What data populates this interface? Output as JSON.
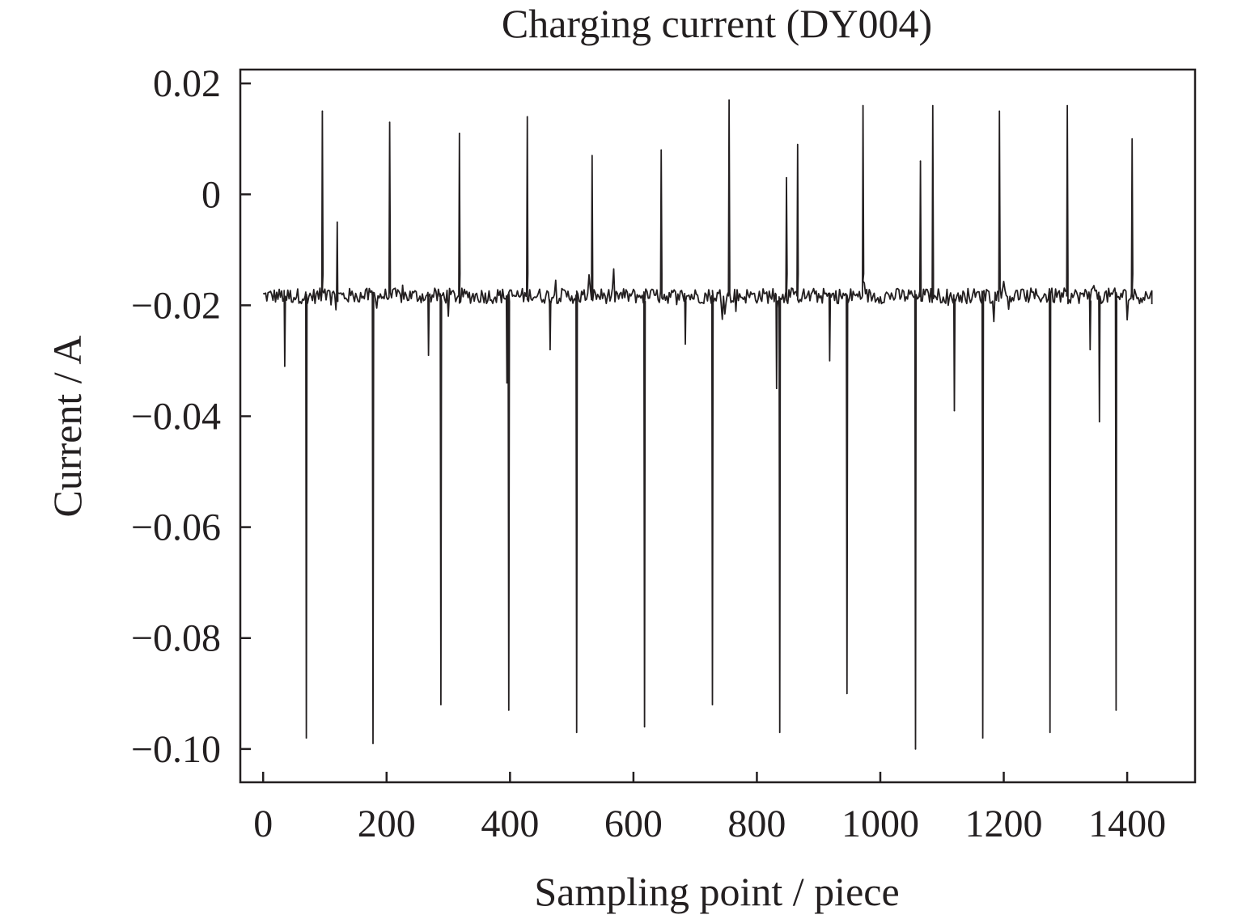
{
  "chart_data": {
    "type": "line",
    "title": "Charging current (DY004)",
    "xlabel": "Sampling point / piece",
    "ylabel": "Current / A",
    "xlim": [
      -37,
      1510
    ],
    "ylim": [
      -0.106,
      0.0225
    ],
    "grid": false,
    "legend": "none",
    "x_ticks": [
      {
        "value": 0,
        "label": "0"
      },
      {
        "value": 200,
        "label": "200"
      },
      {
        "value": 400,
        "label": "400"
      },
      {
        "value": 600,
        "label": "600"
      },
      {
        "value": 800,
        "label": "800"
      },
      {
        "value": 1000,
        "label": "1000"
      },
      {
        "value": 1200,
        "label": "1200"
      },
      {
        "value": 1400,
        "label": "1400"
      }
    ],
    "y_ticks": [
      {
        "value": 0.02,
        "label": "0.02"
      },
      {
        "value": 0,
        "label": "0"
      },
      {
        "value": -0.02,
        "label": "−0.02"
      },
      {
        "value": -0.04,
        "label": "−0.04"
      },
      {
        "value": -0.06,
        "label": "−0.06"
      },
      {
        "value": -0.08,
        "label": "−0.08"
      },
      {
        "value": -0.1,
        "label": "−0.10"
      }
    ],
    "series": [
      {
        "color": "#231f20",
        "baseline": -0.0183,
        "x_range": [
          0,
          1440
        ],
        "x_end": 1440,
        "y_end": -0.0198,
        "negative_spikes": [
          {
            "x": 35,
            "y": -0.031
          },
          {
            "x": 70,
            "y": -0.098
          },
          {
            "x": 178,
            "y": -0.099
          },
          {
            "x": 268,
            "y": -0.029
          },
          {
            "x": 288,
            "y": -0.092
          },
          {
            "x": 395,
            "y": -0.034
          },
          {
            "x": 398,
            "y": -0.093
          },
          {
            "x": 465,
            "y": -0.028
          },
          {
            "x": 508,
            "y": -0.097
          },
          {
            "x": 618,
            "y": -0.096
          },
          {
            "x": 684,
            "y": -0.027
          },
          {
            "x": 728,
            "y": -0.092
          },
          {
            "x": 832,
            "y": -0.035
          },
          {
            "x": 837,
            "y": -0.097
          },
          {
            "x": 918,
            "y": -0.03
          },
          {
            "x": 946,
            "y": -0.09
          },
          {
            "x": 1057,
            "y": -0.1
          },
          {
            "x": 1120,
            "y": -0.039
          },
          {
            "x": 1166,
            "y": -0.098
          },
          {
            "x": 1275,
            "y": -0.097
          },
          {
            "x": 1340,
            "y": -0.028
          },
          {
            "x": 1355,
            "y": -0.041
          },
          {
            "x": 1382,
            "y": -0.093
          }
        ],
        "positive_spikes": [
          {
            "x": 96,
            "y": 0.015
          },
          {
            "x": 120,
            "y": -0.005
          },
          {
            "x": 205,
            "y": 0.013
          },
          {
            "x": 318,
            "y": 0.011
          },
          {
            "x": 428,
            "y": 0.014
          },
          {
            "x": 533,
            "y": 0.007
          },
          {
            "x": 645,
            "y": 0.008
          },
          {
            "x": 755,
            "y": 0.017
          },
          {
            "x": 848,
            "y": 0.003
          },
          {
            "x": 866,
            "y": 0.009
          },
          {
            "x": 972,
            "y": 0.016
          },
          {
            "x": 1065,
            "y": 0.006
          },
          {
            "x": 1085,
            "y": 0.016
          },
          {
            "x": 1193,
            "y": 0.015
          },
          {
            "x": 1303,
            "y": 0.016
          },
          {
            "x": 1408,
            "y": 0.01
          }
        ]
      }
    ]
  }
}
